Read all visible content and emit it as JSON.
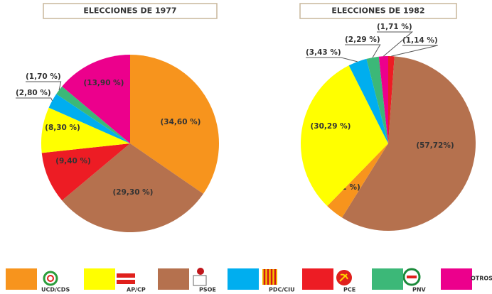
{
  "chart_data": [
    {
      "type": "pie",
      "title": "ELECCIONES DE 1977",
      "values": [
        34.6,
        29.3,
        9.4,
        8.3,
        2.8,
        1.7,
        13.9
      ],
      "value_labels": [
        "(34,60 %)",
        "(29,30 %)",
        "(9,40 %)",
        "(8,30 %)",
        "(2,80 %)",
        "(1,70 %)",
        "(13,90 %)"
      ],
      "colors": [
        "#f7941d",
        "#b5714e",
        "#ed1c24",
        "#ffff00",
        "#00aeef",
        "#3cb878",
        "#ec008c"
      ]
    },
    {
      "type": "pie",
      "title": "ELECCIONES DE 1982",
      "values": [
        1.14,
        57.72,
        3.42,
        30.29,
        3.43,
        2.29,
        1.71
      ],
      "value_labels": [
        "(1,14 %)",
        "(57,72%)",
        "(3,42 %)",
        "(30,29 %)",
        "(3,43 %)",
        "(2,29 %)",
        "(1,71 %)"
      ],
      "colors": [
        "#ed1c24",
        "#b5714e",
        "#f7941d",
        "#ffff00",
        "#00aeef",
        "#3cb878",
        "#ec008c"
      ]
    }
  ],
  "legend": {
    "categories": [
      "UCD/CDS",
      "AP/CP",
      "PSOE",
      "PDC/CIU",
      "PCE",
      "PNV",
      "OTROS"
    ],
    "colors": [
      "#f7941d",
      "#ffff00",
      "#b5714e",
      "#00aeef",
      "#ed1c24",
      "#3cb878",
      "#ec008c"
    ]
  }
}
